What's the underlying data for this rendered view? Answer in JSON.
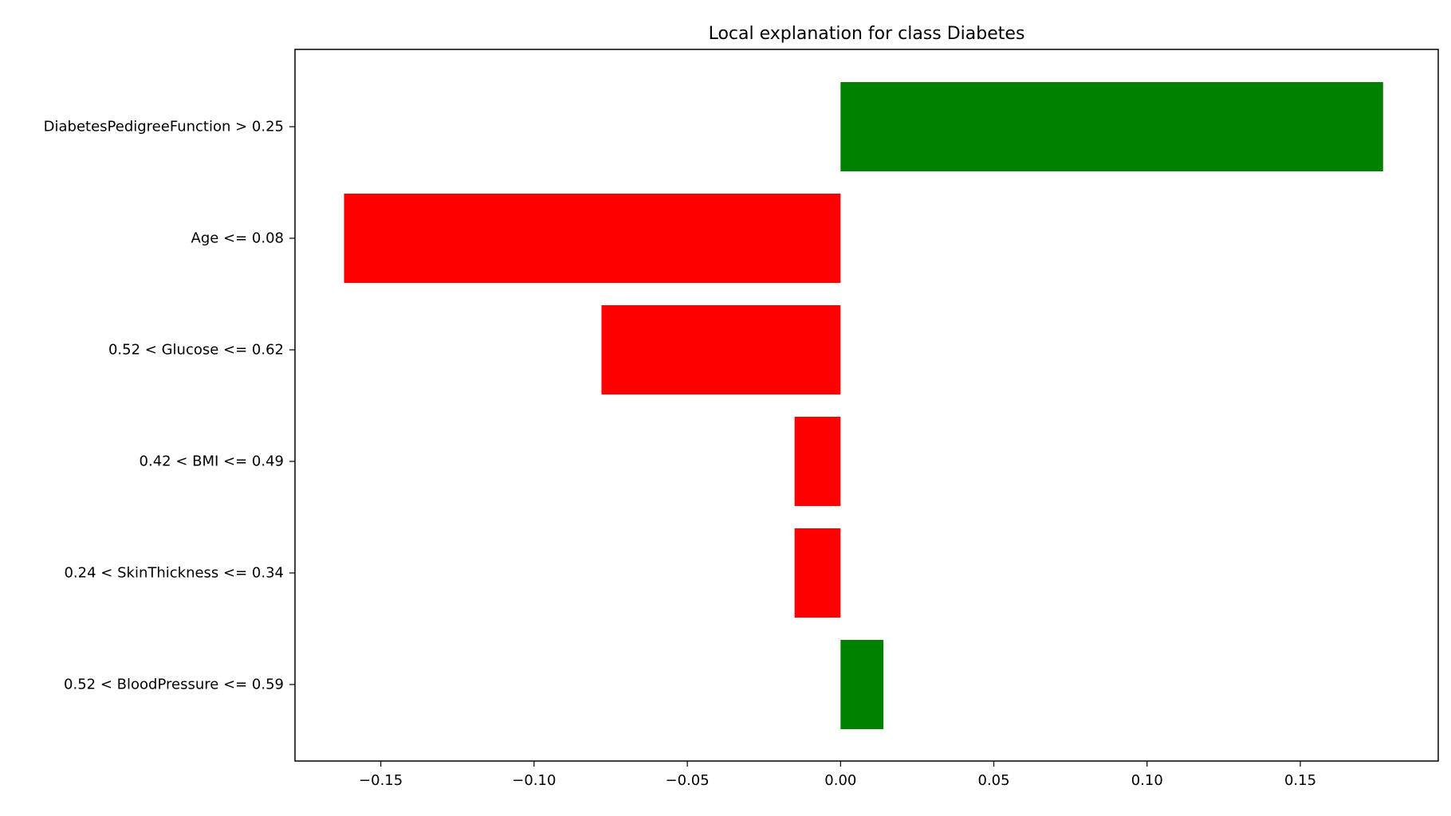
{
  "chart_data": {
    "type": "bar",
    "orientation": "horizontal",
    "title": "Local explanation for class Diabetes",
    "xlabel": "",
    "ylabel": "",
    "categories": [
      "DiabetesPedigreeFunction > 0.25",
      "Age <= 0.08",
      "0.52 < Glucose <= 0.62",
      "0.42 < BMI <= 0.49",
      "0.24 < SkinThickness <= 0.34",
      "0.52 < BloodPressure <= 0.59"
    ],
    "values": [
      0.177,
      -0.162,
      -0.078,
      -0.015,
      -0.015,
      0.014
    ],
    "xlim": [
      -0.178,
      0.195
    ],
    "xticks": [
      -0.15,
      -0.1,
      -0.05,
      0.0,
      0.05,
      0.1,
      0.15
    ],
    "xtick_labels": [
      "−0.15",
      "−0.10",
      "−0.05",
      "0.00",
      "0.05",
      "0.10",
      "0.15"
    ],
    "grid": false,
    "colors": {
      "positive": "#008000",
      "negative": "#ff0000",
      "axes": "#000000",
      "background": "#ffffff"
    }
  }
}
